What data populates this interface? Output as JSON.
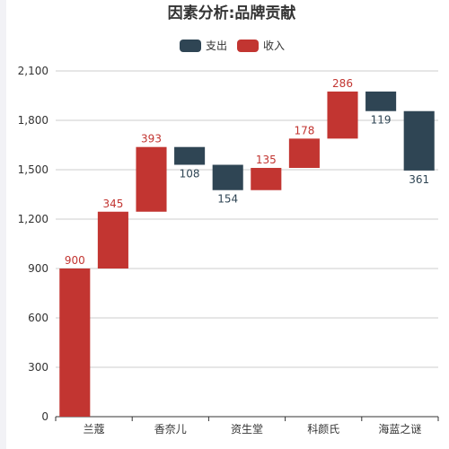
{
  "chart_data": {
    "type": "bar",
    "subtype": "waterfall",
    "title": "因素分析:品牌贡献",
    "legend": {
      "placement": "top-center",
      "items": [
        {
          "name": "支出",
          "color": "#2f4554"
        },
        {
          "name": "收入",
          "color": "#c23531"
        }
      ]
    },
    "categories": [
      "兰蔻",
      "",
      "香奈儿",
      "",
      "资生堂",
      "",
      "科颜氏",
      "",
      "海蓝之谜",
      ""
    ],
    "series": [
      {
        "name": "收入",
        "color": "#c23531",
        "values": [
          900,
          345,
          393,
          null,
          null,
          135,
          178,
          286,
          null,
          null
        ]
      },
      {
        "name": "支出",
        "color": "#2f4554",
        "values": [
          null,
          null,
          null,
          108,
          154,
          null,
          null,
          null,
          119,
          361
        ]
      }
    ],
    "bars": [
      {
        "base": 0,
        "top": 900,
        "label": "900",
        "series": "收入"
      },
      {
        "base": 900,
        "top": 1245,
        "label": "345",
        "series": "收入"
      },
      {
        "base": 1245,
        "top": 1638,
        "label": "393",
        "series": "收入"
      },
      {
        "base": 1530,
        "top": 1638,
        "label": "108",
        "series": "支出"
      },
      {
        "base": 1376,
        "top": 1530,
        "label": "154",
        "series": "支出"
      },
      {
        "base": 1376,
        "top": 1511,
        "label": "135",
        "series": "收入"
      },
      {
        "base": 1511,
        "top": 1689,
        "label": "178",
        "series": "收入"
      },
      {
        "base": 1689,
        "top": 1975,
        "label": "286",
        "series": "收入"
      },
      {
        "base": 1856,
        "top": 1975,
        "label": "119",
        "series": "支出"
      },
      {
        "base": 1495,
        "top": 1856,
        "label": "361",
        "series": "支出"
      }
    ],
    "yaxis": {
      "ticks": [
        "0",
        "300",
        "600",
        "900",
        "1,200",
        "1,500",
        "1,800",
        "2,100"
      ],
      "tick_values": [
        0,
        300,
        600,
        900,
        1200,
        1500,
        1800,
        2100
      ]
    },
    "ylim": [
      0,
      2100
    ],
    "grid": true
  }
}
